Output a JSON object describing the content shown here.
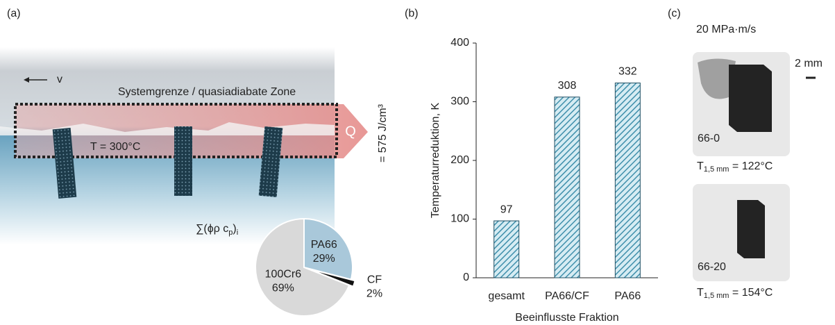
{
  "panel_labels": [
    "(a)",
    "(b)",
    "(c)"
  ],
  "diagram": {
    "velocity": "v",
    "zone": "Systemgrenze / quasiadiabate Zone",
    "temperature": "T = 300°C",
    "heat": "Q",
    "energy": "= 575 J/cm³"
  },
  "photos": {
    "rate": "20 MPa·m/s",
    "scale": "2 mm",
    "samples": [
      {
        "label": "66-0",
        "temp_symbol": "T",
        "temp_subscript": "1,5 mm",
        "temp_value": " = 122°C"
      },
      {
        "label": "66-20",
        "temp_symbol": "T",
        "temp_subscript": "1,5 mm",
        "temp_value": " = 154°C"
      }
    ]
  },
  "chart_data": [
    {
      "type": "pie",
      "title_parts": [
        "∑(ϕρ c",
        "p",
        ")",
        "i"
      ],
      "categories": [
        "PA66",
        "CF",
        "100Cr6"
      ],
      "values": [
        29,
        2,
        69
      ],
      "value_labels": [
        "29%",
        "2%",
        "69%"
      ],
      "colors": [
        "#a9c8da",
        "#111111",
        "#d9d9d9"
      ]
    },
    {
      "type": "bar",
      "categories": [
        "gesamt",
        "PA66/CF",
        "PA66"
      ],
      "values": [
        97,
        308,
        332
      ],
      "color": "#3f8fab",
      "ylim": [
        0,
        400
      ],
      "yticks": [
        0,
        100,
        200,
        300,
        400
      ],
      "ylabel": "Temperaturreduktion, K",
      "xlabel": "Beeinflusste Fraktion"
    }
  ]
}
